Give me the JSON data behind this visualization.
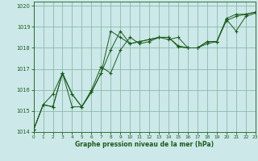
{
  "bg_color": "#cce8e8",
  "grid_color": "#88bbaa",
  "line_color": "#1a5c1a",
  "xlabel": "Graphe pression niveau de la mer (hPa)",
  "xlim": [
    0,
    23
  ],
  "ylim": [
    1014.0,
    1020.2
  ],
  "yticks": [
    1014,
    1015,
    1016,
    1017,
    1018,
    1019,
    1020
  ],
  "xticks": [
    0,
    1,
    2,
    3,
    4,
    5,
    6,
    7,
    8,
    9,
    10,
    11,
    12,
    13,
    14,
    15,
    16,
    17,
    18,
    19,
    20,
    21,
    22,
    23
  ],
  "s1_x": [
    0,
    1,
    2,
    3,
    4,
    5,
    6,
    7,
    8,
    9,
    10,
    11,
    12,
    13,
    14,
    15,
    16,
    17,
    18,
    19,
    20,
    21,
    22,
    23
  ],
  "s1_y": [
    1014.1,
    1015.3,
    1015.2,
    1016.8,
    1015.8,
    1015.2,
    1016.0,
    1017.1,
    1016.8,
    1017.9,
    1018.5,
    1018.2,
    1018.3,
    1018.5,
    1018.4,
    1018.5,
    1018.0,
    1018.0,
    1018.2,
    1018.3,
    1019.4,
    1019.6,
    1019.6,
    1019.7
  ],
  "s2_x": [
    0,
    1,
    2,
    3,
    4,
    5,
    6,
    7,
    8,
    9,
    10,
    11,
    12,
    13,
    14,
    15,
    16,
    17,
    18,
    19,
    20,
    21,
    22,
    23
  ],
  "s2_y": [
    1014.1,
    1015.3,
    1015.8,
    1016.8,
    1015.2,
    1015.2,
    1015.9,
    1016.8,
    1018.8,
    1018.5,
    1018.2,
    1018.3,
    1018.4,
    1018.5,
    1018.5,
    1018.05,
    1018.0,
    1018.0,
    1018.3,
    1018.3,
    1019.35,
    1018.8,
    1019.5,
    1019.65
  ],
  "s3_x": [
    0,
    1,
    2,
    3,
    4,
    5,
    6,
    7,
    8,
    9,
    10,
    11,
    12,
    13,
    14,
    15,
    16,
    17,
    18,
    19,
    20,
    21,
    22,
    23
  ],
  "s3_y": [
    1014.1,
    1015.3,
    1015.2,
    1016.8,
    1015.8,
    1015.2,
    1015.9,
    1016.8,
    1017.9,
    1018.8,
    1018.2,
    1018.3,
    1018.4,
    1018.5,
    1018.5,
    1018.1,
    1018.0,
    1018.0,
    1018.3,
    1018.3,
    1019.3,
    1019.5,
    1019.6,
    1019.7
  ]
}
